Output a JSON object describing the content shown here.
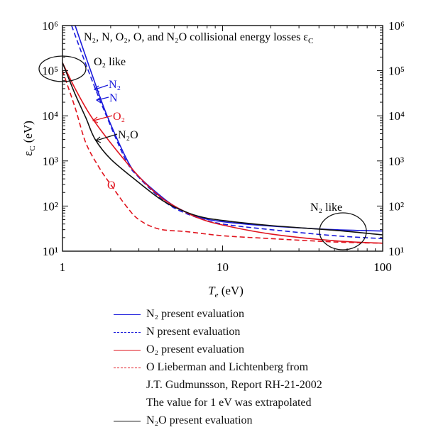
{
  "chart_data": {
    "type": "line",
    "title": "N₂, N, O₂, O, and N₂O collisional energy losses ε",
    "title_sub": "C",
    "xlabel_main": "T",
    "xlabel_sub": "e",
    "xlabel_unit": " (eV)",
    "ylabel_main": "ε",
    "ylabel_sub": "C",
    "ylabel_unit": " (eV)",
    "x_scale": "log",
    "y_scale": "log",
    "xlim": [
      1,
      100
    ],
    "ylim": [
      10,
      1000000
    ],
    "x_ticks": [
      {
        "v": 1,
        "label": "1"
      },
      {
        "v": 10,
        "label": "10"
      },
      {
        "v": 100,
        "label": "100"
      }
    ],
    "y_ticks": [
      {
        "v": 10,
        "label": "10¹"
      },
      {
        "v": 100,
        "label": "10²"
      },
      {
        "v": 1000,
        "label": "10³"
      },
      {
        "v": 10000,
        "label": "10⁴"
      },
      {
        "v": 100000,
        "label": "10⁵"
      },
      {
        "v": 1000000,
        "label": "10⁶"
      }
    ],
    "series": [
      {
        "name": "N₂ present evaluation",
        "color": "#1a1adb",
        "dash": false,
        "points": [
          [
            1.2,
            1000000
          ],
          [
            1.5,
            100000
          ],
          [
            1.9,
            10000
          ],
          [
            2.55,
            1000
          ],
          [
            3,
            450
          ],
          [
            4,
            180
          ],
          [
            5,
            100
          ],
          [
            7,
            58
          ],
          [
            10,
            45
          ],
          [
            20,
            36
          ],
          [
            50,
            30
          ],
          [
            100,
            28
          ]
        ]
      },
      {
        "name": "N present evaluation",
        "color": "#1a1adb",
        "dash": true,
        "points": [
          [
            1.14,
            1000000
          ],
          [
            1.45,
            100000
          ],
          [
            1.88,
            10000
          ],
          [
            2.5,
            1000
          ],
          [
            3,
            430
          ],
          [
            4,
            160
          ],
          [
            5,
            90
          ],
          [
            7,
            55
          ],
          [
            10,
            40
          ],
          [
            20,
            30
          ],
          [
            50,
            22
          ],
          [
            100,
            19
          ]
        ]
      },
      {
        "name": "O₂ present evaluation",
        "color": "#e0141e",
        "dash": false,
        "points": [
          [
            1,
            150000
          ],
          [
            1.2,
            40000
          ],
          [
            1.5,
            10000
          ],
          [
            2,
            2500
          ],
          [
            3,
            450
          ],
          [
            4,
            170
          ],
          [
            5,
            100
          ],
          [
            7,
            55
          ],
          [
            10,
            38
          ],
          [
            20,
            24
          ],
          [
            50,
            17
          ],
          [
            100,
            15
          ]
        ]
      },
      {
        "name": "O Lieberman and Lichtenberg from",
        "name_line2": "J.T. Gudmunsson, Report RH-21-2002",
        "name_line3": "The value for 1 eV was extrapolated",
        "color": "#e0141e",
        "dash": true,
        "points": [
          [
            1,
            100000
          ],
          [
            1.2,
            15000
          ],
          [
            1.4,
            2500
          ],
          [
            1.7,
            700
          ],
          [
            2,
            300
          ],
          [
            2.5,
            100
          ],
          [
            3,
            50
          ],
          [
            4,
            31
          ],
          [
            6,
            27
          ],
          [
            10,
            22
          ],
          [
            20,
            19
          ],
          [
            50,
            16
          ],
          [
            100,
            15
          ]
        ]
      },
      {
        "name": "N₂O present evaluation",
        "color": "#111111",
        "dash": false,
        "points": [
          [
            1,
            150000
          ],
          [
            1.2,
            30000
          ],
          [
            1.4,
            9000
          ],
          [
            1.6,
            3000
          ],
          [
            2,
            1100
          ],
          [
            3,
            330
          ],
          [
            4,
            150
          ],
          [
            5,
            95
          ],
          [
            7,
            60
          ],
          [
            10,
            48
          ],
          [
            20,
            37
          ],
          [
            50,
            29
          ],
          [
            100,
            23
          ]
        ]
      }
    ],
    "annotations": [
      {
        "text": "O₂ like",
        "type": "ellipse-label"
      },
      {
        "text": "N₂ like",
        "type": "ellipse-label"
      },
      {
        "text": "N₂",
        "color": "#1a1adb"
      },
      {
        "text": "N",
        "color": "#1a1adb"
      },
      {
        "text": "O₂",
        "color": "#e0141e"
      },
      {
        "text": "N₂O",
        "color": "#111111"
      },
      {
        "text": "O",
        "color": "#e0141e"
      }
    ],
    "legend_placement": "below"
  }
}
